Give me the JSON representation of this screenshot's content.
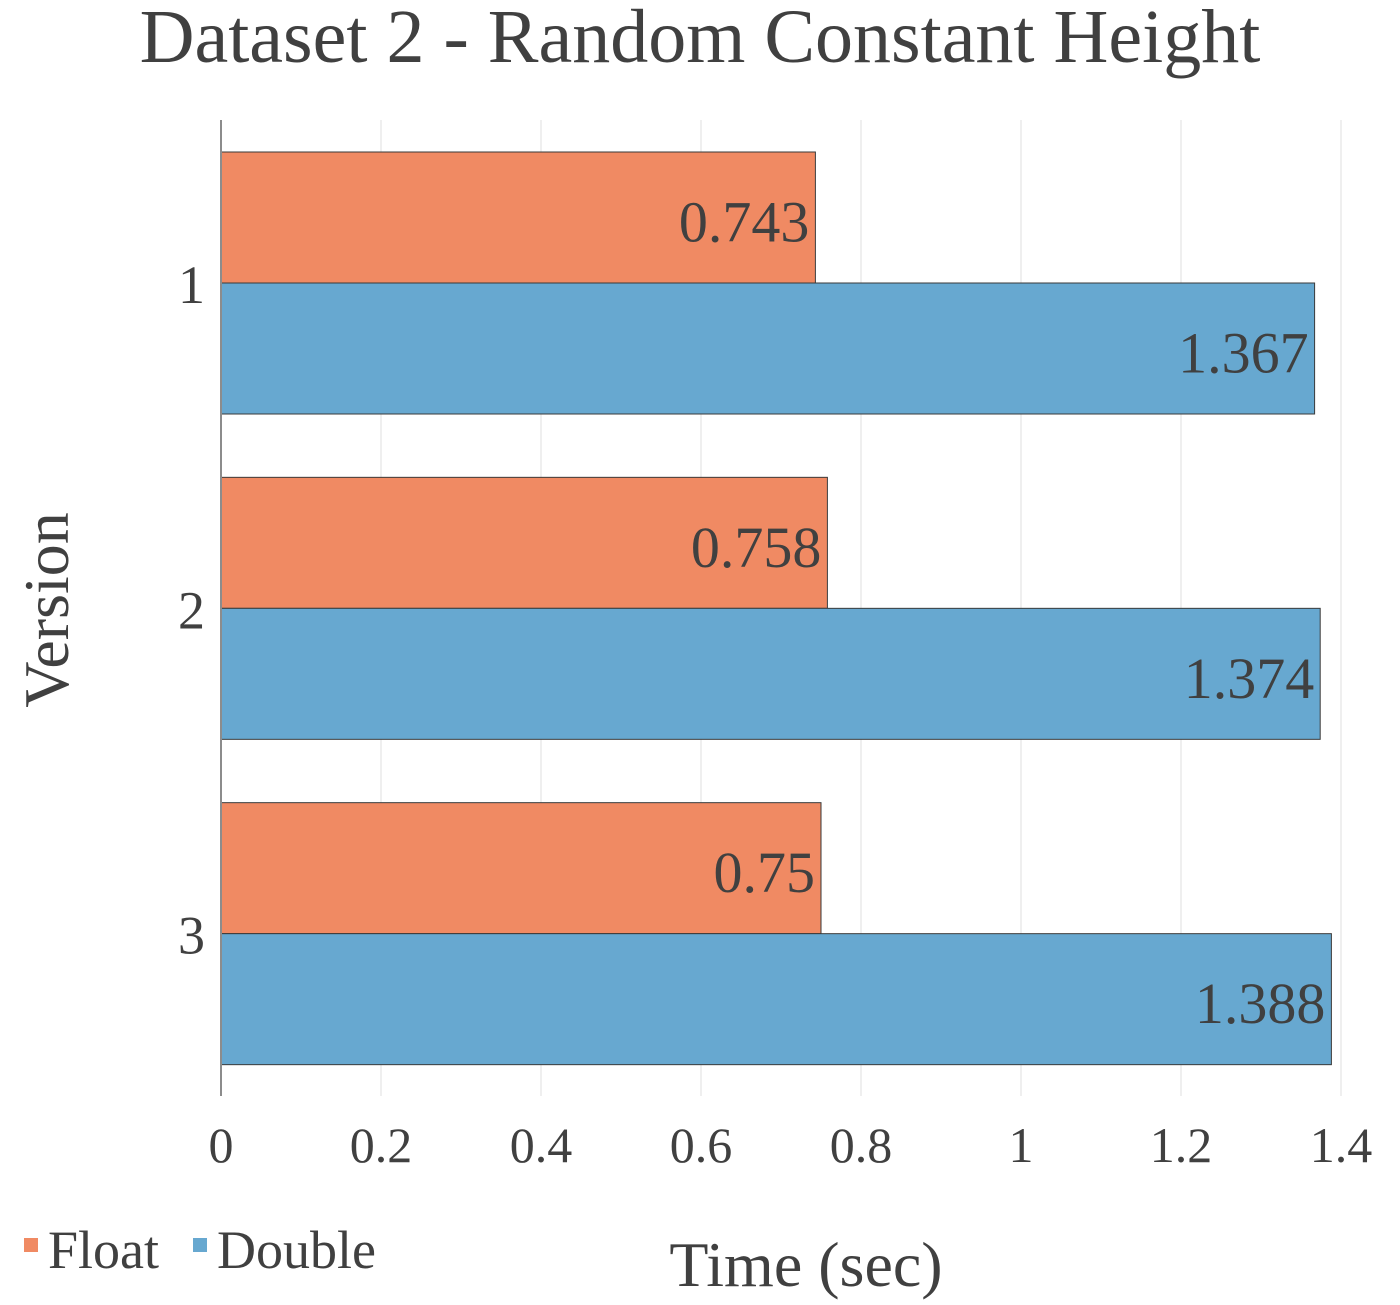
{
  "chart_data": {
    "type": "bar",
    "orientation": "horizontal",
    "title": "Dataset 2 - Random Constant Height",
    "xlabel": "Time (sec)",
    "ylabel": "Version",
    "categories": [
      "1",
      "2",
      "3"
    ],
    "series": [
      {
        "name": "Float",
        "values": [
          0.743,
          0.758,
          0.75
        ],
        "color": "#F08A63"
      },
      {
        "name": "Double",
        "values": [
          1.367,
          1.374,
          1.388
        ],
        "color": "#67A8D0"
      }
    ],
    "data_labels": [
      [
        "0.743",
        "0.758",
        "0.75"
      ],
      [
        "1.367",
        "1.374",
        "1.388"
      ]
    ],
    "xlim": [
      0,
      1.4
    ],
    "xticks": [
      "0",
      "0.2",
      "0.4",
      "0.6",
      "0.8",
      "1",
      "1.2",
      "1.4"
    ],
    "grid": "vertical",
    "legend_position": "bottom-left",
    "colors": {
      "text": "#404040",
      "grid": "#EFEFEF",
      "axis": "#8C8C8C",
      "bar_border": "#3A3A3A"
    }
  }
}
